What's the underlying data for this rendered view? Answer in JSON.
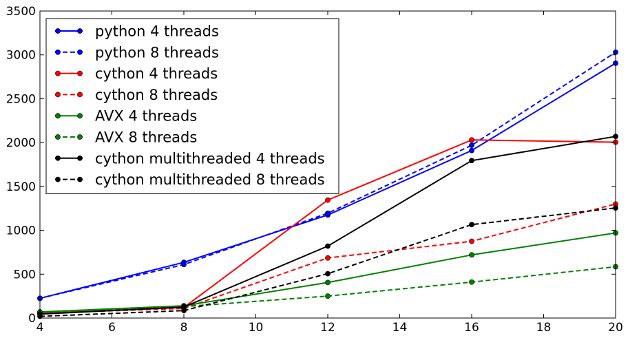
{
  "chart_data": {
    "type": "line",
    "x": [
      4,
      8,
      12,
      16,
      20
    ],
    "xlim": [
      4,
      20
    ],
    "ylim": [
      0,
      3500
    ],
    "xticks": [
      4,
      6,
      8,
      10,
      12,
      14,
      16,
      18,
      20
    ],
    "yticks": [
      0,
      500,
      1000,
      1500,
      2000,
      2500,
      3000,
      3500
    ],
    "grid": false,
    "legend_position": "top-left",
    "series": [
      {
        "name": "python 4 threads",
        "color": "#0000ff",
        "style": "solid",
        "values": [
          225,
          635,
          1175,
          1910,
          2905
        ]
      },
      {
        "name": "python 8 threads",
        "color": "#0000ff",
        "style": "dashed",
        "values": [
          225,
          610,
          1195,
          1970,
          3030
        ]
      },
      {
        "name": "cython 4 threads",
        "color": "#ff0000",
        "style": "solid",
        "values": [
          55,
          120,
          1345,
          2030,
          2005
        ]
      },
      {
        "name": "cython 8 threads",
        "color": "#ff0000",
        "style": "dashed",
        "values": [
          55,
          110,
          685,
          875,
          1300
        ]
      },
      {
        "name": "AVX 4 threads",
        "color": "#008000",
        "style": "solid",
        "values": [
          70,
          140,
          405,
          720,
          970
        ]
      },
      {
        "name": "AVX 8 threads",
        "color": "#008000",
        "style": "dashed",
        "values": [
          65,
          130,
          250,
          410,
          585
        ]
      },
      {
        "name": "cython multithreaded 4 threads",
        "color": "#000000",
        "style": "solid",
        "values": [
          45,
          125,
          820,
          1795,
          2070
        ]
      },
      {
        "name": "cython multithreaded 8 threads",
        "color": "#000000",
        "style": "dashed",
        "values": [
          20,
          85,
          505,
          1065,
          1255
        ]
      }
    ]
  }
}
